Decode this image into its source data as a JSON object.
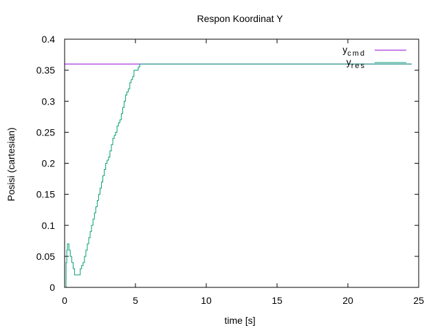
{
  "chart_data": {
    "type": "line",
    "title": "Respon Koordinat Y",
    "xlabel": "time [s]",
    "ylabel": "Posisi (cartesian)",
    "xlim": [
      0,
      25
    ],
    "ylim": [
      0,
      0.4
    ],
    "x_ticks": [
      {
        "value": 0,
        "label": "0"
      },
      {
        "value": 5,
        "label": "5"
      },
      {
        "value": 10,
        "label": "10"
      },
      {
        "value": 15,
        "label": "15"
      },
      {
        "value": 20,
        "label": "20"
      },
      {
        "value": 25,
        "label": "25"
      }
    ],
    "y_ticks": [
      {
        "value": 0,
        "label": "0"
      },
      {
        "value": 0.05,
        "label": "0.05"
      },
      {
        "value": 0.1,
        "label": "0.1"
      },
      {
        "value": 0.15,
        "label": "0.15"
      },
      {
        "value": 0.2,
        "label": "0.2"
      },
      {
        "value": 0.25,
        "label": "0.25"
      },
      {
        "value": 0.3,
        "label": "0.3"
      },
      {
        "value": 0.35,
        "label": "0.35"
      },
      {
        "value": 0.4,
        "label": "0.4"
      }
    ],
    "grid": false,
    "legend_position": "top-right",
    "series": [
      {
        "name": "y",
        "subscript": "cmd",
        "color": "#9400d3",
        "step": true,
        "x": [
          0,
          24.5
        ],
        "y": [
          0.36,
          0.36
        ]
      },
      {
        "name": "y",
        "subscript": "res",
        "color": "#009e73",
        "step": true,
        "x": [
          0,
          0.1,
          0.15,
          0.2,
          0.3,
          0.4,
          0.5,
          0.6,
          0.7,
          0.8,
          1.0,
          1.1,
          1.2,
          1.3,
          1.4,
          1.5,
          1.6,
          1.7,
          1.8,
          1.9,
          2.0,
          2.1,
          2.2,
          2.3,
          2.4,
          2.5,
          2.6,
          2.7,
          2.8,
          2.9,
          3.0,
          3.1,
          3.2,
          3.3,
          3.4,
          3.5,
          3.6,
          3.7,
          3.8,
          3.9,
          4.0,
          4.1,
          4.2,
          4.3,
          4.4,
          4.5,
          4.6,
          4.7,
          4.8,
          4.9,
          5.0,
          5.1,
          5.2,
          5.3,
          5.4,
          6.0,
          10.0,
          15.0,
          20.0,
          24.5
        ],
        "y": [
          0,
          0.04,
          0.06,
          0.07,
          0.06,
          0.05,
          0.04,
          0.03,
          0.02,
          0.02,
          0.02,
          0.03,
          0.035,
          0.04,
          0.05,
          0.06,
          0.07,
          0.08,
          0.09,
          0.1,
          0.11,
          0.12,
          0.13,
          0.14,
          0.15,
          0.16,
          0.17,
          0.18,
          0.19,
          0.2,
          0.205,
          0.21,
          0.22,
          0.23,
          0.24,
          0.245,
          0.25,
          0.26,
          0.265,
          0.27,
          0.28,
          0.29,
          0.3,
          0.31,
          0.315,
          0.32,
          0.33,
          0.335,
          0.34,
          0.35,
          0.35,
          0.35,
          0.355,
          0.36,
          0.36,
          0.36,
          0.36,
          0.36,
          0.36,
          0.36
        ]
      }
    ]
  }
}
